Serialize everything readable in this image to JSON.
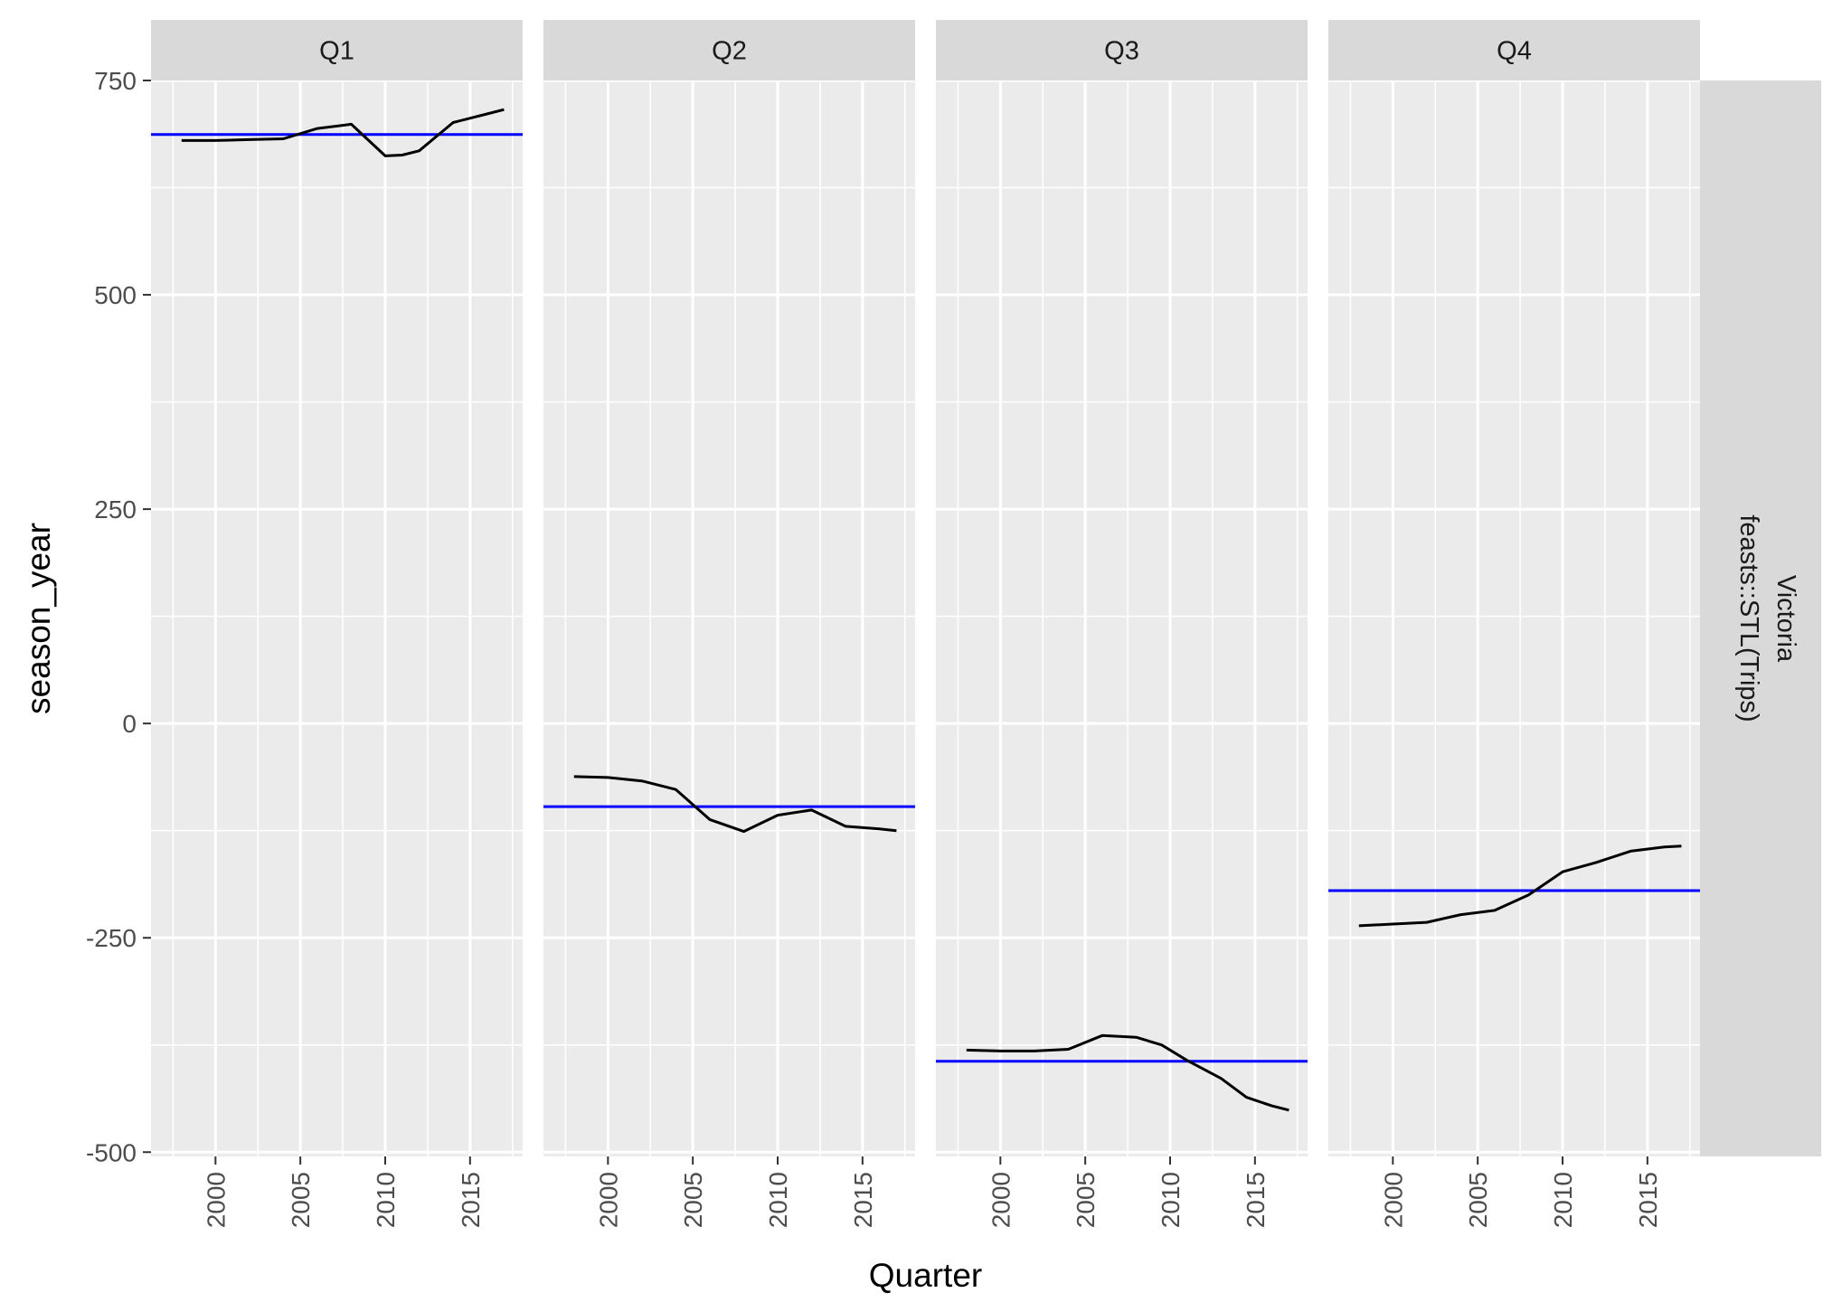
{
  "chart_data": {
    "type": "line",
    "xlabel": "Quarter",
    "ylabel": "season_year",
    "ylim": [
      -505,
      750
    ],
    "xlim": [
      1996.2,
      2018.1
    ],
    "y_ticks": [
      -500,
      -250,
      0,
      250,
      500,
      750
    ],
    "y_tick_labels": [
      "-500",
      "-250",
      "0",
      "250",
      "500",
      "750"
    ],
    "x_ticks": [
      2000,
      2005,
      2010,
      2015
    ],
    "x_tick_labels": [
      "2000",
      "2005",
      "2010",
      "2015"
    ],
    "grid": true,
    "row_strip": [
      "Victoria",
      "feasts::STL(Trips)"
    ],
    "colors": {
      "line": "#000000",
      "mean_line": "#0000ff",
      "panel_bg": "#ebebeb",
      "strip_bg": "#d9d9d9",
      "grid": "#ffffff"
    },
    "facets": [
      {
        "label": "Q1",
        "mean": 687,
        "points": [
          [
            1998.0,
            680
          ],
          [
            2000.0,
            680
          ],
          [
            2002.0,
            681
          ],
          [
            2004.0,
            682
          ],
          [
            2006.0,
            694
          ],
          [
            2008.0,
            699
          ],
          [
            2010.0,
            662
          ],
          [
            2011.0,
            663
          ],
          [
            2012.0,
            668
          ],
          [
            2014.0,
            701
          ],
          [
            2016.0,
            711
          ],
          [
            2017.0,
            716
          ]
        ]
      },
      {
        "label": "Q2",
        "mean": -97,
        "points": [
          [
            1998.0,
            -62
          ],
          [
            2000.0,
            -63
          ],
          [
            2002.0,
            -67
          ],
          [
            2004.0,
            -77
          ],
          [
            2006.0,
            -112
          ],
          [
            2008.0,
            -126
          ],
          [
            2010.0,
            -107
          ],
          [
            2012.0,
            -101
          ],
          [
            2014.0,
            -120
          ],
          [
            2016.0,
            -123
          ],
          [
            2017.0,
            -125
          ]
        ]
      },
      {
        "label": "Q3",
        "mean": -394,
        "points": [
          [
            1998.0,
            -381
          ],
          [
            2000.0,
            -382
          ],
          [
            2002.0,
            -382
          ],
          [
            2004.0,
            -380
          ],
          [
            2006.0,
            -364
          ],
          [
            2008.0,
            -366
          ],
          [
            2009.5,
            -375
          ],
          [
            2011.0,
            -393
          ],
          [
            2013.0,
            -414
          ],
          [
            2014.5,
            -436
          ],
          [
            2016.0,
            -446
          ],
          [
            2017.0,
            -451
          ]
        ]
      },
      {
        "label": "Q4",
        "mean": -195,
        "points": [
          [
            1998.0,
            -236
          ],
          [
            2000.0,
            -234
          ],
          [
            2002.0,
            -232
          ],
          [
            2004.0,
            -223
          ],
          [
            2006.0,
            -218
          ],
          [
            2008.0,
            -200
          ],
          [
            2010.0,
            -173
          ],
          [
            2012.0,
            -162
          ],
          [
            2014.0,
            -149
          ],
          [
            2016.0,
            -144
          ],
          [
            2017.0,
            -143
          ]
        ]
      }
    ]
  }
}
